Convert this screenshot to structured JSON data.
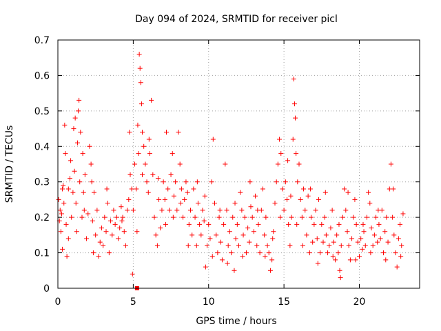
{
  "chart_data": {
    "type": "scatter",
    "title": "Day 094 of 2024, SRMTID for receiver picl",
    "xlabel": "GPS time / hours",
    "ylabel": "SRMTID / TECUs",
    "xlim": [
      0,
      24
    ],
    "ylim": [
      0,
      0.7
    ],
    "x_ticks": [
      0,
      5,
      10,
      15,
      20
    ],
    "x_tick_labels": [
      "0",
      "5",
      "10",
      "15",
      "20"
    ],
    "y_ticks": [
      0,
      0.1,
      0.2,
      0.3,
      0.4,
      0.5,
      0.6,
      0.7
    ],
    "y_tick_labels": [
      "0",
      "0.1",
      "0.2",
      "0.3",
      "0.4",
      "0.5",
      "0.6",
      "0.7"
    ],
    "grid": true,
    "marker": "+",
    "color": "#ff0000",
    "series": [
      {
        "name": "SRMTID",
        "points": [
          [
            0.05,
            0.25
          ],
          [
            0.1,
            0.19
          ],
          [
            0.15,
            0.22
          ],
          [
            0.2,
            0.16
          ],
          [
            0.25,
            0.21
          ],
          [
            0.3,
            0.11
          ],
          [
            0.35,
            0.29
          ],
          [
            0.4,
            0.24
          ],
          [
            0.45,
            0.46
          ],
          [
            0.5,
            0.38
          ],
          [
            0.55,
            0.18
          ],
          [
            0.6,
            0.09
          ],
          [
            0.7,
            0.28
          ],
          [
            0.8,
            0.31
          ],
          [
            0.85,
            0.36
          ],
          [
            0.9,
            0.2
          ],
          [
            1.0,
            0.27
          ],
          [
            1.05,
            0.45
          ],
          [
            1.1,
            0.33
          ],
          [
            1.15,
            0.48
          ],
          [
            1.2,
            0.24
          ],
          [
            1.3,
            0.41
          ],
          [
            1.35,
            0.5
          ],
          [
            1.4,
            0.53
          ],
          [
            1.45,
            0.3
          ],
          [
            1.5,
            0.44
          ],
          [
            1.6,
            0.2
          ],
          [
            1.65,
            0.38
          ],
          [
            1.7,
            0.27
          ],
          [
            1.8,
            0.32
          ],
          [
            1.9,
            0.14
          ],
          [
            2.0,
            0.21
          ],
          [
            2.1,
            0.4
          ],
          [
            2.2,
            0.35
          ],
          [
            2.25,
            0.3
          ],
          [
            2.3,
            0.19
          ],
          [
            2.4,
            0.27
          ],
          [
            2.5,
            0.15
          ],
          [
            2.6,
            0.22
          ],
          [
            2.7,
            0.09
          ],
          [
            2.8,
            0.13
          ],
          [
            2.9,
            0.17
          ],
          [
            3.0,
            0.12
          ],
          [
            3.1,
            0.2
          ],
          [
            3.2,
            0.16
          ],
          [
            3.3,
            0.24
          ],
          [
            3.4,
            0.1
          ],
          [
            3.5,
            0.19
          ],
          [
            3.6,
            0.15
          ],
          [
            3.7,
            0.22
          ],
          [
            3.8,
            0.18
          ],
          [
            3.9,
            0.2
          ],
          [
            4.0,
            0.14
          ],
          [
            4.1,
            0.17
          ],
          [
            4.2,
            0.23
          ],
          [
            4.3,
            0.2
          ],
          [
            4.4,
            0.16
          ],
          [
            4.5,
            0.12
          ],
          [
            4.6,
            0.22
          ],
          [
            4.7,
            0.25
          ],
          [
            4.75,
            0.44
          ],
          [
            4.8,
            0.32
          ],
          [
            4.9,
            0.28
          ],
          [
            4.95,
            0.04
          ],
          [
            5.0,
            0.22
          ],
          [
            5.1,
            0.35
          ],
          [
            5.2,
            0.28
          ],
          [
            5.3,
            0.46
          ],
          [
            5.35,
            0.38
          ],
          [
            5.4,
            0.66
          ],
          [
            5.45,
            0.62
          ],
          [
            5.5,
            0.58
          ],
          [
            5.55,
            0.52
          ],
          [
            5.6,
            0.44
          ],
          [
            5.7,
            0.4
          ],
          [
            5.8,
            0.35
          ],
          [
            5.9,
            0.3
          ],
          [
            6.0,
            0.27
          ],
          [
            6.1,
            0.38
          ],
          [
            6.2,
            0.53
          ],
          [
            6.3,
            0.32
          ],
          [
            6.4,
            0.2
          ],
          [
            6.5,
            0.15
          ],
          [
            6.6,
            0.12
          ],
          [
            6.7,
            0.25
          ],
          [
            6.8,
            0.17
          ],
          [
            6.9,
            0.22
          ],
          [
            7.0,
            0.3
          ],
          [
            7.1,
            0.25
          ],
          [
            7.2,
            0.44
          ],
          [
            7.3,
            0.28
          ],
          [
            7.4,
            0.22
          ],
          [
            7.5,
            0.32
          ],
          [
            7.6,
            0.38
          ],
          [
            7.7,
            0.26
          ],
          [
            7.8,
            0.3
          ],
          [
            7.9,
            0.22
          ],
          [
            8.0,
            0.44
          ],
          [
            8.1,
            0.35
          ],
          [
            8.2,
            0.28
          ],
          [
            8.3,
            0.2
          ],
          [
            8.4,
            0.25
          ],
          [
            8.5,
            0.3
          ],
          [
            8.6,
            0.27
          ],
          [
            8.7,
            0.18
          ],
          [
            8.8,
            0.22
          ],
          [
            8.9,
            0.15
          ],
          [
            9.0,
            0.28
          ],
          [
            9.1,
            0.2
          ],
          [
            9.2,
            0.12
          ],
          [
            9.3,
            0.24
          ],
          [
            9.4,
            0.18
          ],
          [
            9.5,
            0.15
          ],
          [
            9.6,
            0.22
          ],
          [
            9.7,
            0.19
          ],
          [
            9.8,
            0.06
          ],
          [
            9.9,
            0.12
          ],
          [
            10.0,
            0.18
          ],
          [
            10.1,
            0.14
          ],
          [
            10.2,
            0.3
          ],
          [
            10.3,
            0.42
          ],
          [
            10.4,
            0.24
          ],
          [
            10.5,
            0.15
          ],
          [
            10.6,
            0.1
          ],
          [
            10.7,
            0.2
          ],
          [
            10.8,
            0.13
          ],
          [
            10.9,
            0.08
          ],
          [
            11.0,
            0.18
          ],
          [
            11.1,
            0.35
          ],
          [
            11.2,
            0.22
          ],
          [
            11.3,
            0.12
          ],
          [
            11.4,
            0.16
          ],
          [
            11.5,
            0.1
          ],
          [
            11.6,
            0.2
          ],
          [
            11.7,
            0.05
          ],
          [
            11.8,
            0.14
          ],
          [
            11.9,
            0.18
          ],
          [
            12.0,
            0.12
          ],
          [
            12.1,
            0.27
          ],
          [
            12.2,
            0.22
          ],
          [
            12.3,
            0.15
          ],
          [
            12.4,
            0.2
          ],
          [
            12.5,
            0.1
          ],
          [
            12.6,
            0.17
          ],
          [
            12.7,
            0.13
          ],
          [
            12.8,
            0.23
          ],
          [
            12.9,
            0.2
          ],
          [
            13.0,
            0.16
          ],
          [
            13.1,
            0.26
          ],
          [
            13.2,
            0.12
          ],
          [
            13.3,
            0.18
          ],
          [
            13.4,
            0.1
          ],
          [
            13.5,
            0.22
          ],
          [
            13.6,
            0.28
          ],
          [
            13.7,
            0.15
          ],
          [
            13.8,
            0.2
          ],
          [
            13.9,
            0.12
          ],
          [
            14.0,
            0.1
          ],
          [
            14.1,
            0.05
          ],
          [
            14.2,
            0.08
          ],
          [
            14.3,
            0.16
          ],
          [
            14.4,
            0.24
          ],
          [
            14.5,
            0.3
          ],
          [
            14.6,
            0.35
          ],
          [
            14.7,
            0.42
          ],
          [
            14.8,
            0.38
          ],
          [
            14.9,
            0.28
          ],
          [
            15.0,
            0.22
          ],
          [
            15.1,
            0.3
          ],
          [
            15.2,
            0.25
          ],
          [
            15.3,
            0.18
          ],
          [
            15.4,
            0.12
          ],
          [
            15.5,
            0.2
          ],
          [
            15.6,
            0.42
          ],
          [
            15.65,
            0.59
          ],
          [
            15.7,
            0.52
          ],
          [
            15.75,
            0.48
          ],
          [
            15.8,
            0.38
          ],
          [
            15.9,
            0.3
          ],
          [
            16.0,
            0.35
          ],
          [
            16.1,
            0.25
          ],
          [
            16.2,
            0.2
          ],
          [
            16.3,
            0.28
          ],
          [
            16.4,
            0.22
          ],
          [
            16.5,
            0.15
          ],
          [
            16.6,
            0.26
          ],
          [
            16.7,
            0.1
          ],
          [
            16.8,
            0.2
          ],
          [
            16.9,
            0.13
          ],
          [
            17.0,
            0.18
          ],
          [
            17.1,
            0.22
          ],
          [
            17.2,
            0.14
          ],
          [
            17.3,
            0.25
          ],
          [
            17.4,
            0.1
          ],
          [
            17.5,
            0.18
          ],
          [
            17.6,
            0.13
          ],
          [
            17.7,
            0.2
          ],
          [
            17.8,
            0.15
          ],
          [
            17.9,
            0.1
          ],
          [
            18.0,
            0.12
          ],
          [
            18.1,
            0.17
          ],
          [
            18.2,
            0.22
          ],
          [
            18.3,
            0.13
          ],
          [
            18.4,
            0.08
          ],
          [
            18.5,
            0.15
          ],
          [
            18.6,
            0.1
          ],
          [
            18.7,
            0.05
          ],
          [
            18.75,
            0.03
          ],
          [
            18.8,
            0.12
          ],
          [
            18.9,
            0.2
          ],
          [
            19.0,
            0.28
          ],
          [
            19.1,
            0.22
          ],
          [
            19.2,
            0.16
          ],
          [
            19.3,
            0.12
          ],
          [
            19.4,
            0.08
          ],
          [
            19.5,
            0.14
          ],
          [
            19.6,
            0.2
          ],
          [
            19.7,
            0.25
          ],
          [
            19.8,
            0.18
          ],
          [
            19.9,
            0.13
          ],
          [
            20.0,
            0.09
          ],
          [
            20.1,
            0.14
          ],
          [
            20.2,
            0.11
          ],
          [
            20.3,
            0.16
          ],
          [
            20.4,
            0.12
          ],
          [
            20.5,
            0.2
          ],
          [
            20.6,
            0.27
          ],
          [
            20.7,
            0.24
          ],
          [
            20.8,
            0.17
          ],
          [
            20.9,
            0.12
          ],
          [
            21.0,
            0.15
          ],
          [
            21.1,
            0.2
          ],
          [
            21.2,
            0.13
          ],
          [
            21.3,
            0.18
          ],
          [
            21.4,
            0.14
          ],
          [
            21.5,
            0.22
          ],
          [
            21.6,
            0.1
          ],
          [
            21.7,
            0.16
          ],
          [
            21.8,
            0.2
          ],
          [
            21.9,
            0.13
          ],
          [
            22.0,
            0.28
          ],
          [
            22.1,
            0.35
          ],
          [
            22.2,
            0.2
          ],
          [
            22.3,
            0.15
          ],
          [
            22.4,
            0.1
          ],
          [
            22.5,
            0.06
          ],
          [
            22.6,
            0.14
          ],
          [
            22.7,
            0.18
          ],
          [
            22.8,
            0.12
          ],
          [
            22.9,
            0.21
          ],
          [
            0.3,
            0.28
          ],
          [
            0.7,
            0.14
          ],
          [
            1.25,
            0.16
          ],
          [
            1.75,
            0.22
          ],
          [
            2.35,
            0.1
          ],
          [
            3.25,
            0.28
          ],
          [
            4.25,
            0.19
          ],
          [
            5.25,
            0.16
          ],
          [
            5.6,
            0.32
          ],
          [
            6.05,
            0.42
          ],
          [
            6.65,
            0.31
          ],
          [
            7.15,
            0.18
          ],
          [
            7.65,
            0.2
          ],
          [
            8.15,
            0.24
          ],
          [
            8.65,
            0.12
          ],
          [
            9.25,
            0.3
          ],
          [
            9.75,
            0.26
          ],
          [
            10.25,
            0.09
          ],
          [
            10.75,
            0.22
          ],
          [
            11.25,
            0.07
          ],
          [
            11.75,
            0.24
          ],
          [
            12.25,
            0.09
          ],
          [
            12.75,
            0.3
          ],
          [
            13.25,
            0.22
          ],
          [
            13.75,
            0.09
          ],
          [
            14.25,
            0.14
          ],
          [
            14.75,
            0.2
          ],
          [
            15.25,
            0.36
          ],
          [
            15.45,
            0.26
          ],
          [
            15.85,
            0.18
          ],
          [
            16.25,
            0.12
          ],
          [
            16.75,
            0.28
          ],
          [
            17.25,
            0.07
          ],
          [
            17.75,
            0.27
          ],
          [
            18.25,
            0.09
          ],
          [
            18.65,
            0.18
          ],
          [
            19.25,
            0.27
          ],
          [
            19.75,
            0.08
          ],
          [
            20.25,
            0.18
          ],
          [
            20.75,
            0.1
          ],
          [
            21.25,
            0.22
          ],
          [
            21.75,
            0.08
          ],
          [
            22.25,
            0.28
          ],
          [
            22.75,
            0.09
          ]
        ]
      }
    ],
    "special_point": [
      5.25,
      0.0
    ]
  }
}
